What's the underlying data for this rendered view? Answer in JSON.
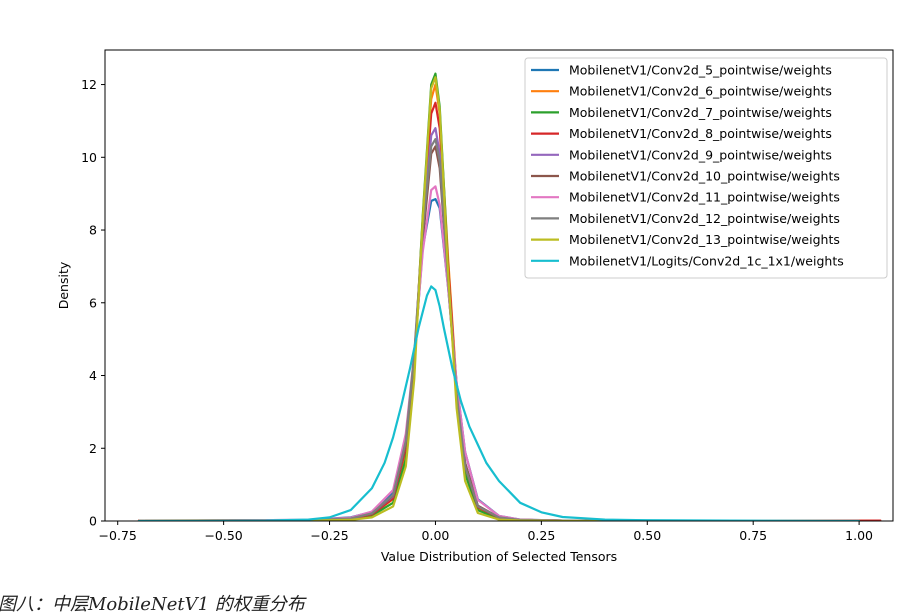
{
  "caption": "图八：中层MobileNetV1 的权重分布",
  "chart_data": {
    "type": "line",
    "title": "",
    "xlabel": "Value Distribution of Selected Tensors",
    "ylabel": "Density",
    "xlim": [
      -0.78,
      1.08
    ],
    "ylim": [
      0,
      12.95
    ],
    "xticks": [
      -0.75,
      -0.5,
      -0.25,
      0.0,
      0.25,
      0.5,
      0.75,
      1.0
    ],
    "xtick_labels": [
      "−0.75",
      "−0.50",
      "−0.25",
      "0.00",
      "0.25",
      "0.50",
      "0.75",
      "1.00"
    ],
    "yticks": [
      0,
      2,
      4,
      6,
      8,
      10,
      12
    ],
    "ytick_labels": [
      "0",
      "2",
      "4",
      "6",
      "8",
      "10",
      "12"
    ],
    "grid": false,
    "legend_position": "top-right",
    "series": [
      {
        "name": "MobilenetV1/Conv2d_5_pointwise/weights",
        "color": "#1f77b4",
        "x": [
          -0.7,
          -0.3,
          -0.2,
          -0.15,
          -0.1,
          -0.07,
          -0.05,
          -0.03,
          -0.01,
          0.0,
          0.01,
          0.03,
          0.05,
          0.07,
          0.1,
          0.15,
          0.2,
          0.3,
          0.5,
          0.7
        ],
        "y": [
          0.0,
          0.03,
          0.1,
          0.25,
          0.8,
          2.2,
          4.5,
          7.5,
          8.8,
          8.85,
          8.6,
          6.4,
          3.8,
          1.9,
          0.6,
          0.14,
          0.04,
          0.01,
          0.0,
          0.0
        ]
      },
      {
        "name": "MobilenetV1/Conv2d_6_pointwise/weights",
        "color": "#ff7f0e",
        "x": [
          -0.7,
          -0.3,
          -0.2,
          -0.15,
          -0.1,
          -0.07,
          -0.05,
          -0.03,
          -0.01,
          0.0,
          0.01,
          0.03,
          0.05,
          0.07,
          0.1,
          0.15,
          0.2,
          0.3,
          0.5,
          0.7,
          1.05
        ],
        "y": [
          0.01,
          0.02,
          0.06,
          0.18,
          0.6,
          1.9,
          4.3,
          8.3,
          11.6,
          12.0,
          11.2,
          7.2,
          3.7,
          1.5,
          0.35,
          0.08,
          0.03,
          0.01,
          0.0,
          0.0,
          0.01
        ]
      },
      {
        "name": "MobilenetV1/Conv2d_7_pointwise/weights",
        "color": "#2ca02c",
        "x": [
          -0.7,
          -0.3,
          -0.2,
          -0.15,
          -0.1,
          -0.07,
          -0.05,
          -0.03,
          -0.01,
          0.0,
          0.01,
          0.03,
          0.05,
          0.07,
          0.1,
          0.15,
          0.2,
          0.3,
          0.5,
          0.7
        ],
        "y": [
          0.0,
          0.02,
          0.05,
          0.15,
          0.5,
          1.7,
          4.1,
          8.4,
          12.0,
          12.3,
          11.4,
          7.0,
          3.4,
          1.3,
          0.3,
          0.06,
          0.02,
          0.0,
          0.0,
          0.0
        ]
      },
      {
        "name": "MobilenetV1/Conv2d_8_pointwise/weights",
        "color": "#d62728",
        "x": [
          -0.7,
          -0.3,
          -0.2,
          -0.15,
          -0.1,
          -0.07,
          -0.05,
          -0.03,
          -0.01,
          0.0,
          0.01,
          0.03,
          0.05,
          0.07,
          0.1,
          0.15,
          0.2,
          0.3,
          0.5,
          0.7,
          1.05
        ],
        "y": [
          0.01,
          0.02,
          0.06,
          0.18,
          0.62,
          2.0,
          4.4,
          8.1,
          11.2,
          11.5,
          10.8,
          7.0,
          3.6,
          1.5,
          0.38,
          0.09,
          0.03,
          0.01,
          0.0,
          0.0,
          0.01
        ]
      },
      {
        "name": "MobilenetV1/Conv2d_9_pointwise/weights",
        "color": "#9467bd",
        "x": [
          -0.7,
          -0.3,
          -0.2,
          -0.15,
          -0.1,
          -0.07,
          -0.05,
          -0.03,
          -0.01,
          0.0,
          0.01,
          0.03,
          0.05,
          0.07,
          0.1,
          0.15,
          0.2,
          0.3,
          0.5,
          0.7
        ],
        "y": [
          0.0,
          0.02,
          0.07,
          0.2,
          0.68,
          2.1,
          4.5,
          8.0,
          10.6,
          10.8,
          10.1,
          6.7,
          3.6,
          1.6,
          0.42,
          0.1,
          0.03,
          0.01,
          0.0,
          0.0
        ]
      },
      {
        "name": "MobilenetV1/Conv2d_10_pointwise/weights",
        "color": "#8c564b",
        "x": [
          -0.7,
          -0.3,
          -0.2,
          -0.15,
          -0.1,
          -0.07,
          -0.05,
          -0.03,
          -0.01,
          0.0,
          0.01,
          0.03,
          0.05,
          0.07,
          0.1,
          0.15,
          0.2,
          0.3,
          0.5,
          0.7
        ],
        "y": [
          0.0,
          0.02,
          0.07,
          0.2,
          0.7,
          2.1,
          4.4,
          7.7,
          10.1,
          10.3,
          9.7,
          6.5,
          3.5,
          1.6,
          0.42,
          0.1,
          0.03,
          0.01,
          0.0,
          0.0
        ]
      },
      {
        "name": "MobilenetV1/Conv2d_11_pointwise/weights",
        "color": "#e377c2",
        "x": [
          -0.7,
          -0.3,
          -0.2,
          -0.15,
          -0.1,
          -0.07,
          -0.05,
          -0.03,
          -0.01,
          0.0,
          0.01,
          0.03,
          0.05,
          0.07,
          0.1,
          0.15,
          0.2,
          0.3,
          0.5,
          0.7
        ],
        "y": [
          0.0,
          0.03,
          0.09,
          0.26,
          0.85,
          2.4,
          4.6,
          7.4,
          9.1,
          9.2,
          8.7,
          6.4,
          3.8,
          1.9,
          0.58,
          0.14,
          0.04,
          0.01,
          0.0,
          0.0
        ]
      },
      {
        "name": "MobilenetV1/Conv2d_12_pointwise/weights",
        "color": "#7f7f7f",
        "x": [
          -0.7,
          -0.3,
          -0.2,
          -0.15,
          -0.1,
          -0.07,
          -0.05,
          -0.03,
          -0.01,
          0.0,
          0.01,
          0.03,
          0.05,
          0.07,
          0.1,
          0.15,
          0.2,
          0.3,
          0.5,
          0.7
        ],
        "y": [
          0.0,
          0.02,
          0.07,
          0.21,
          0.72,
          2.2,
          4.6,
          8.0,
          10.3,
          10.5,
          9.9,
          6.6,
          3.5,
          1.5,
          0.4,
          0.1,
          0.03,
          0.01,
          0.0,
          0.0
        ]
      },
      {
        "name": "MobilenetV1/Conv2d_13_pointwise/weights",
        "color": "#bcbd22",
        "x": [
          -0.7,
          -0.3,
          -0.2,
          -0.15,
          -0.1,
          -0.07,
          -0.05,
          -0.03,
          -0.01,
          0.0,
          0.01,
          0.03,
          0.05,
          0.07,
          0.1,
          0.15,
          0.2,
          0.3,
          0.5,
          0.7
        ],
        "y": [
          0.0,
          0.01,
          0.03,
          0.1,
          0.4,
          1.5,
          3.9,
          8.3,
          11.9,
          12.2,
          11.3,
          6.8,
          3.1,
          1.1,
          0.22,
          0.04,
          0.01,
          0.0,
          0.0,
          0.0
        ]
      },
      {
        "name": "MobilenetV1/Logits/Conv2d_1c_1x1/weights",
        "color": "#17becf",
        "x": [
          -0.7,
          -0.4,
          -0.3,
          -0.25,
          -0.2,
          -0.15,
          -0.12,
          -0.1,
          -0.08,
          -0.06,
          -0.04,
          -0.02,
          -0.01,
          0.0,
          0.01,
          0.02,
          0.04,
          0.06,
          0.08,
          0.1,
          0.12,
          0.15,
          0.2,
          0.25,
          0.3,
          0.4,
          0.5,
          0.7,
          1.0
        ],
        "y": [
          0.0,
          0.01,
          0.04,
          0.1,
          0.3,
          0.9,
          1.6,
          2.3,
          3.2,
          4.2,
          5.3,
          6.2,
          6.45,
          6.35,
          5.9,
          5.3,
          4.2,
          3.3,
          2.6,
          2.1,
          1.6,
          1.1,
          0.5,
          0.24,
          0.11,
          0.04,
          0.02,
          0.01,
          0.0
        ]
      }
    ]
  }
}
